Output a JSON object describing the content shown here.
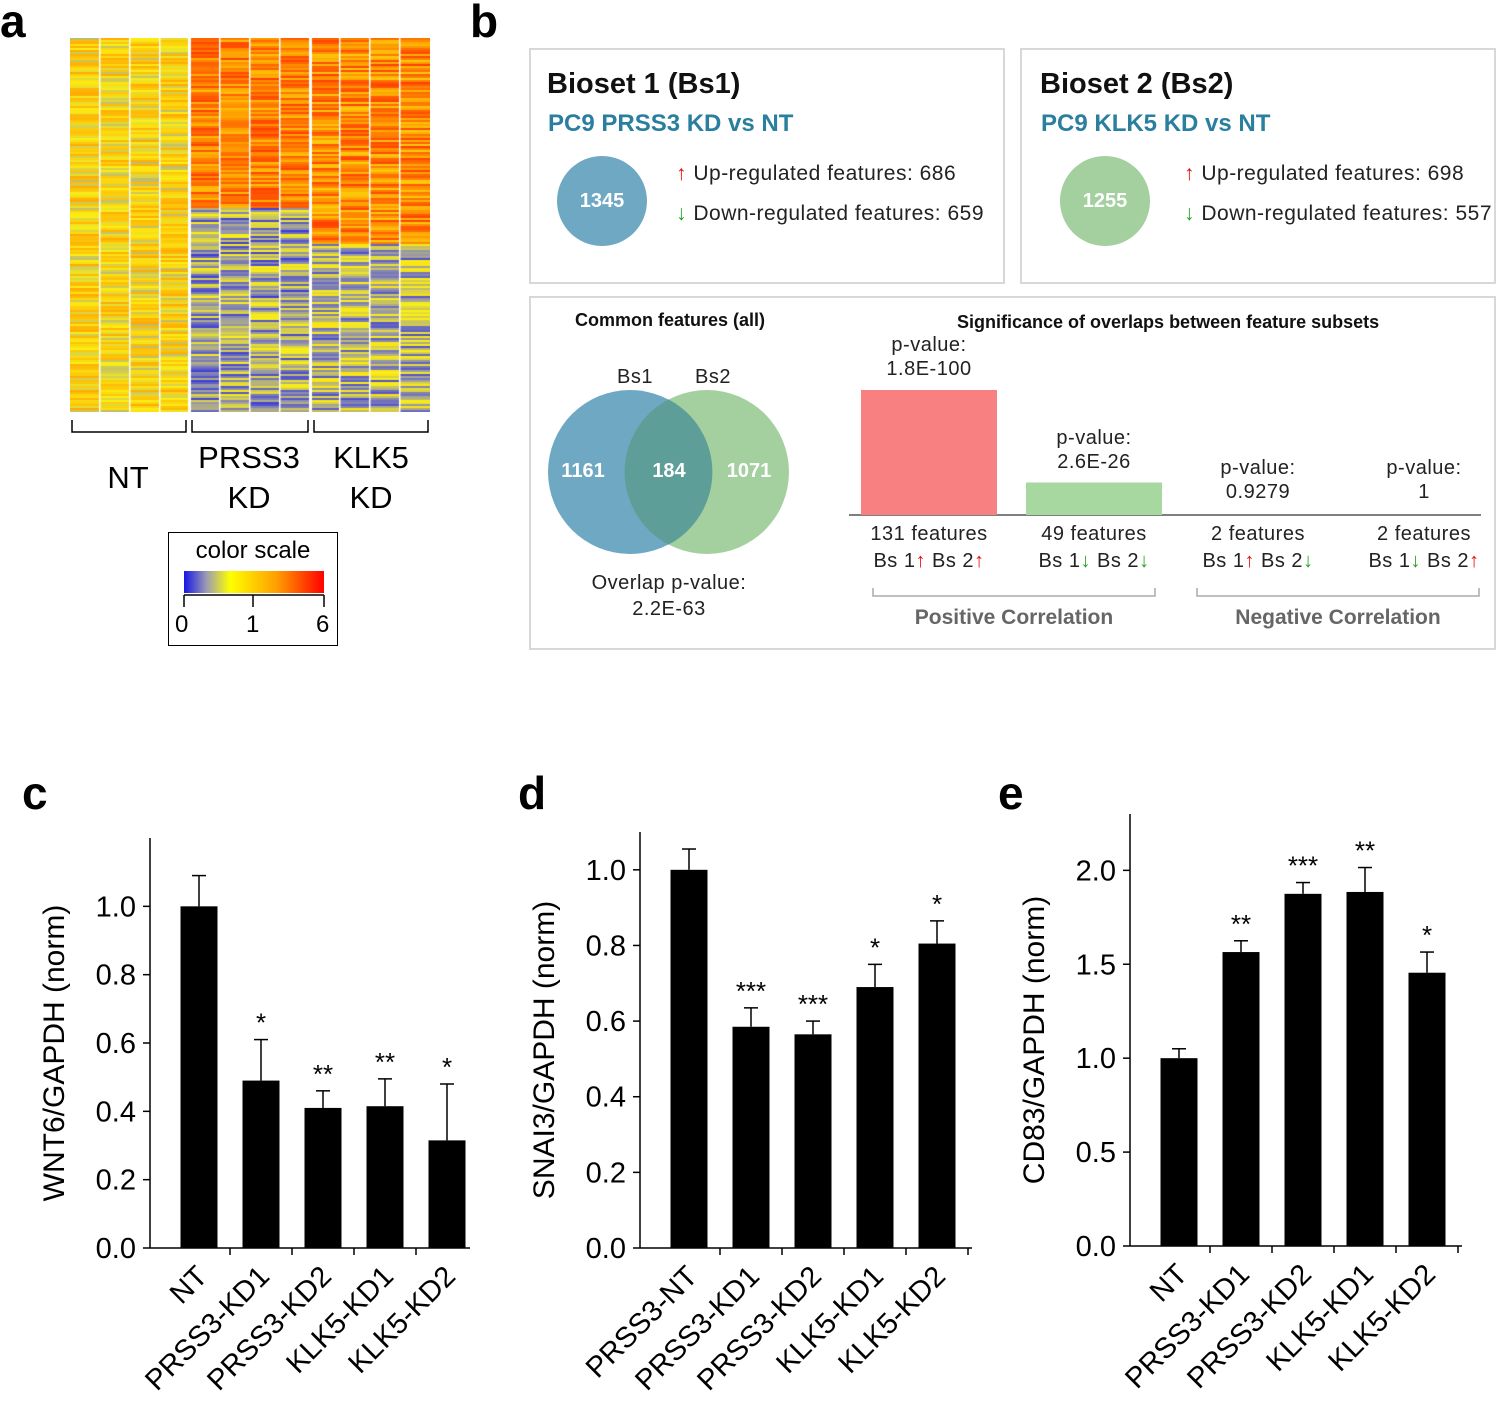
{
  "panels": {
    "a": "a",
    "b": "b",
    "c": "c",
    "d": "d",
    "e": "e"
  },
  "panel_a": {
    "groups": [
      {
        "line1": "NT",
        "line2": ""
      },
      {
        "line1": "PRSS3",
        "line2": "KD"
      },
      {
        "line1": "KLK5",
        "line2": "KD"
      }
    ],
    "color_scale": {
      "title": "color scale",
      "ticks": [
        "0",
        "1",
        "6"
      ],
      "colors": {
        "low": "#1616e6",
        "mid": "#ffff00",
        "high": "#ff0000"
      }
    }
  },
  "panel_b": {
    "bioset1": {
      "title": "Bioset 1 (Bs1)",
      "subtitle": "PC9 PRSS3 KD vs NT",
      "total": "1345",
      "up_label": "Up-regulated features: 686",
      "down_label": "Down-regulated features: 659",
      "color": "#6fa8c2"
    },
    "bioset2": {
      "title": "Bioset 2 (Bs2)",
      "subtitle": "PC9 KLK5 KD vs NT",
      "total": "1255",
      "up_label": "Up-regulated features: 698",
      "down_label": "Down-regulated features: 557",
      "color": "#a4cf9e"
    },
    "common": {
      "title": "Common features (all)",
      "bs1_label": "Bs1",
      "bs2_label": "Bs2",
      "left_only": "1161",
      "overlap": "184",
      "right_only": "1071",
      "overlap_p_label": "Overlap p-value:",
      "overlap_p_value": "2.2E-63"
    },
    "significance": {
      "title": "Significance of overlaps between feature subsets",
      "items": [
        {
          "p_label": "p-value:",
          "p_value": "1.8E-100",
          "features": "131 features",
          "bs1_dir": "up",
          "bs2_dir": "up",
          "color": "#f88080",
          "rel_height": 1.0
        },
        {
          "p_label": "p-value:",
          "p_value": "2.6E-26",
          "features": "49 features",
          "bs1_dir": "down",
          "bs2_dir": "down",
          "color": "#a6d8a0",
          "rel_height": 0.26
        },
        {
          "p_label": "p-value:",
          "p_value": "0.9279",
          "features": "2 features",
          "bs1_dir": "up",
          "bs2_dir": "down",
          "color": "#cccccc",
          "rel_height": 0
        },
        {
          "p_label": "p-value:",
          "p_value": "1",
          "features": "2 features",
          "bs1_dir": "down",
          "bs2_dir": "up",
          "color": "#cccccc",
          "rel_height": 0
        }
      ],
      "bs1_text": "Bs 1",
      "bs2_text": "Bs 2",
      "positive_label": "Positive Correlation",
      "negative_label": "Negative Correlation"
    }
  },
  "chart_data": [
    {
      "id": "c",
      "type": "bar",
      "ylabel": "WNT6/GAPDH (norm)",
      "categories": [
        "NT",
        "PRSS3-KD1",
        "PRSS3-KD2",
        "KLK5-KD1",
        "KLK5-KD2"
      ],
      "values": [
        1.0,
        0.49,
        0.41,
        0.415,
        0.315
      ],
      "errors": [
        0.09,
        0.12,
        0.05,
        0.08,
        0.165
      ],
      "significance": [
        "",
        "*",
        "**",
        "**",
        "*"
      ],
      "ylim": [
        0,
        1.2
      ],
      "yticks": [
        "0.0",
        "0.2",
        "0.4",
        "0.6",
        "0.8",
        "1.0"
      ],
      "ytick_values": [
        0,
        0.2,
        0.4,
        0.6,
        0.8,
        1.0
      ]
    },
    {
      "id": "d",
      "type": "bar",
      "ylabel": "SNAI3/GAPDH (norm)",
      "categories": [
        "PRSS3-NT",
        "PRSS3-KD1",
        "PRSS3-KD2",
        "KLK5-KD1",
        "KLK5-KD2"
      ],
      "values": [
        1.0,
        0.585,
        0.565,
        0.69,
        0.805
      ],
      "errors": [
        0.055,
        0.05,
        0.035,
        0.06,
        0.06
      ],
      "significance": [
        "",
        "***",
        "***",
        "*",
        "*"
      ],
      "ylim": [
        0,
        1.1
      ],
      "yticks": [
        "0.0",
        "0.2",
        "0.4",
        "0.6",
        "0.8",
        "1.0"
      ],
      "ytick_values": [
        0,
        0.2,
        0.4,
        0.6,
        0.8,
        1.0
      ]
    },
    {
      "id": "e",
      "type": "bar",
      "ylabel": "CD83/GAPDH (norm)",
      "categories": [
        "NT",
        "PRSS3-KD1",
        "PRSS3-KD2",
        "KLK5-KD1",
        "KLK5-KD2"
      ],
      "values": [
        1.0,
        1.565,
        1.875,
        1.885,
        1.455
      ],
      "errors": [
        0.05,
        0.06,
        0.06,
        0.13,
        0.11
      ],
      "significance": [
        "",
        "**",
        "***",
        "**",
        "*"
      ],
      "ylim": [
        0,
        2.3
      ],
      "yticks": [
        "0.0",
        "0.5",
        "1.0",
        "1.5",
        "2.0"
      ],
      "ytick_values": [
        0,
        0.5,
        1.0,
        1.5,
        2.0
      ]
    }
  ]
}
